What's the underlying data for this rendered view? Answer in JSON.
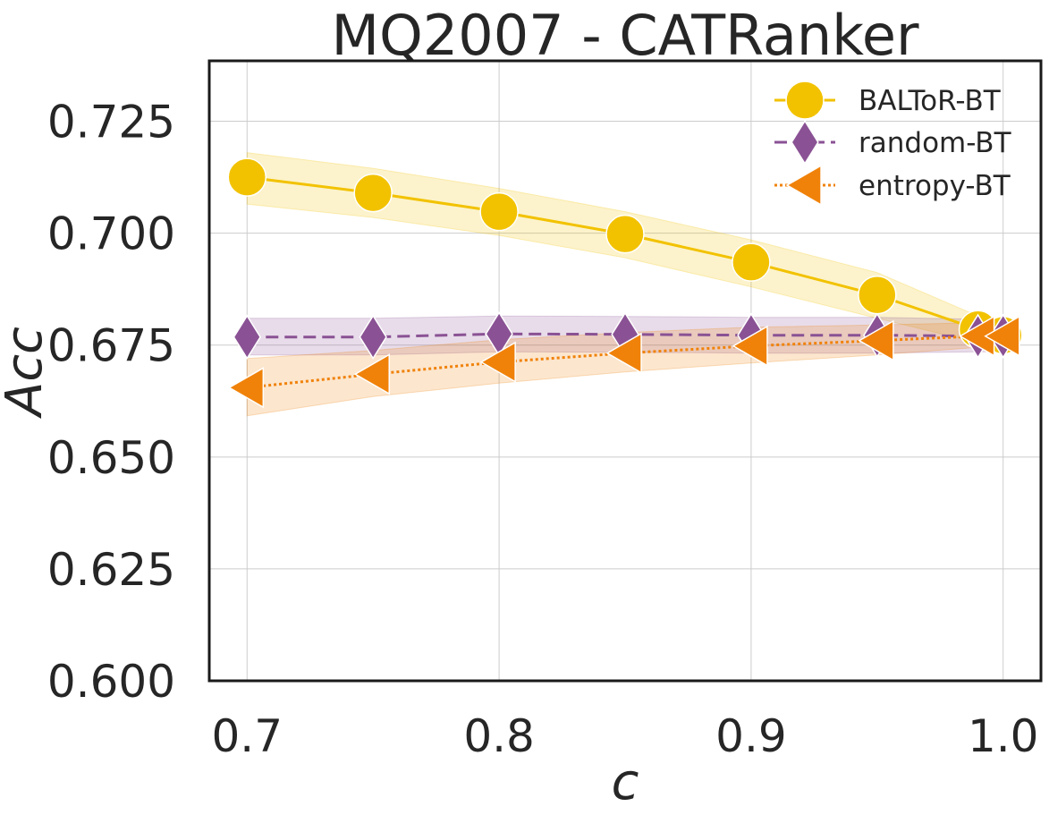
{
  "chart_data": {
    "type": "line",
    "title": "MQ2007 - CATRanker",
    "xlabel": "c",
    "ylabel": "Acc",
    "xlim": [
      0.685,
      1.015
    ],
    "ylim": [
      0.6,
      0.7385
    ],
    "xticks": [
      0.7,
      0.8,
      0.9,
      1.0
    ],
    "xtick_labels": [
      "0.7",
      "0.8",
      "0.9",
      "1.0"
    ],
    "yticks": [
      0.6,
      0.625,
      0.65,
      0.675,
      0.7,
      0.725
    ],
    "ytick_labels": [
      "0.600",
      "0.625",
      "0.650",
      "0.675",
      "0.700",
      "0.725"
    ],
    "grid": true,
    "legend_position": "top-right",
    "x": [
      0.7,
      0.75,
      0.8,
      0.85,
      0.9,
      0.95,
      0.99,
      1.0
    ],
    "series": [
      {
        "name": "BALToR-BT",
        "color": "#f2c200",
        "marker": "circle",
        "linestyle": "solid",
        "values": [
          0.7125,
          0.709,
          0.7048,
          0.6998,
          0.6935,
          0.6862,
          0.6785,
          0.6772
        ],
        "lower": [
          0.7065,
          0.7035,
          0.6995,
          0.6945,
          0.688,
          0.681,
          0.6755,
          0.675
        ],
        "upper": [
          0.718,
          0.7145,
          0.71,
          0.7048,
          0.6985,
          0.6912,
          0.6815,
          0.6795
        ]
      },
      {
        "name": "random-BT",
        "color": "#8a5294",
        "marker": "diamond",
        "linestyle": "dashed",
        "values": [
          0.6768,
          0.6768,
          0.6775,
          0.6774,
          0.6772,
          0.6772,
          0.677,
          0.677
        ],
        "lower": [
          0.6728,
          0.6728,
          0.6735,
          0.6734,
          0.6732,
          0.6732,
          0.6735,
          0.6735
        ],
        "upper": [
          0.681,
          0.681,
          0.6815,
          0.6814,
          0.6812,
          0.6812,
          0.6808,
          0.6808
        ]
      },
      {
        "name": "entropy-BT",
        "color": "#f0820a",
        "marker": "triangle-left",
        "linestyle": "dotted",
        "values": [
          0.6655,
          0.6685,
          0.6712,
          0.6732,
          0.6748,
          0.676,
          0.677,
          0.677
        ],
        "lower": [
          0.6592,
          0.6635,
          0.6665,
          0.669,
          0.671,
          0.6728,
          0.6745,
          0.6745
        ],
        "upper": [
          0.672,
          0.6738,
          0.6762,
          0.6778,
          0.679,
          0.6795,
          0.68,
          0.68
        ]
      }
    ]
  }
}
